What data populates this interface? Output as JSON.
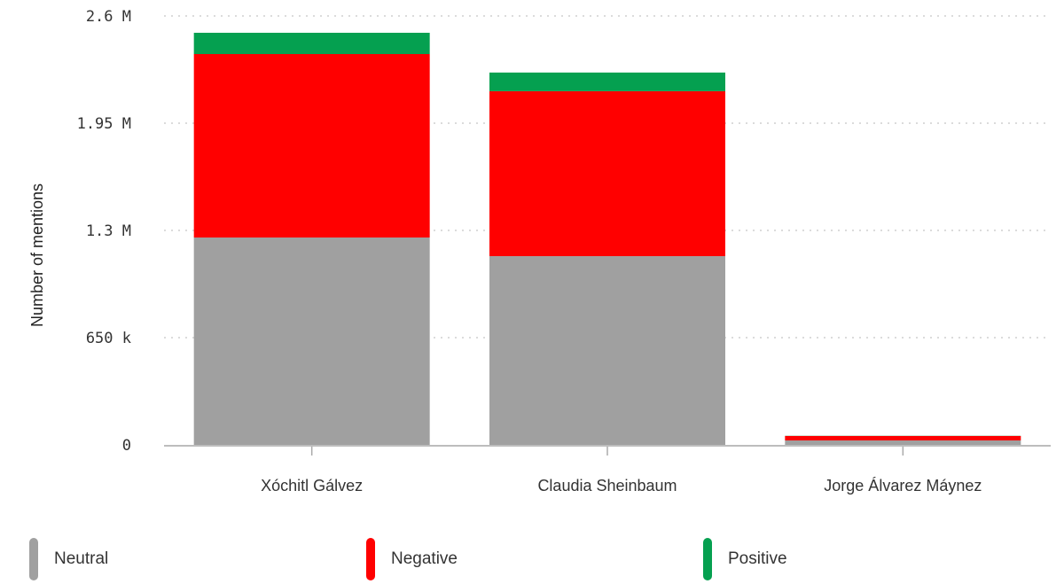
{
  "chart_data": {
    "type": "bar",
    "stacked": true,
    "title": "",
    "xlabel": "",
    "ylabel": "Number of mentions",
    "ylim": [
      0,
      2600000
    ],
    "yticks": [
      0,
      650000,
      1300000,
      1950000,
      2600000
    ],
    "ytick_labels": [
      "0",
      "650 k",
      "1.3 M",
      "1.95 M",
      "2.6 M"
    ],
    "grid": "horizontal dotted",
    "legend_position": "bottom",
    "categories": [
      "Xóchitl Gálvez",
      "Claudia Sheinbaum",
      "Jorge Álvarez Máynez"
    ],
    "series": [
      {
        "name": "Neutral",
        "color": "#a0a0a0",
        "values": [
          1257000,
          1144000,
          27000
        ]
      },
      {
        "name": "Negative",
        "color": "#ff0000",
        "values": [
          1112000,
          1000000,
          27000
        ]
      },
      {
        "name": "Positive",
        "color": "#05a050",
        "values": [
          129000,
          113000,
          1000
        ]
      }
    ]
  },
  "legend": {
    "items": [
      {
        "label": "Neutral",
        "color": "#a0a0a0"
      },
      {
        "label": "Negative",
        "color": "#ff0000"
      },
      {
        "label": "Positive",
        "color": "#05a050"
      }
    ]
  }
}
